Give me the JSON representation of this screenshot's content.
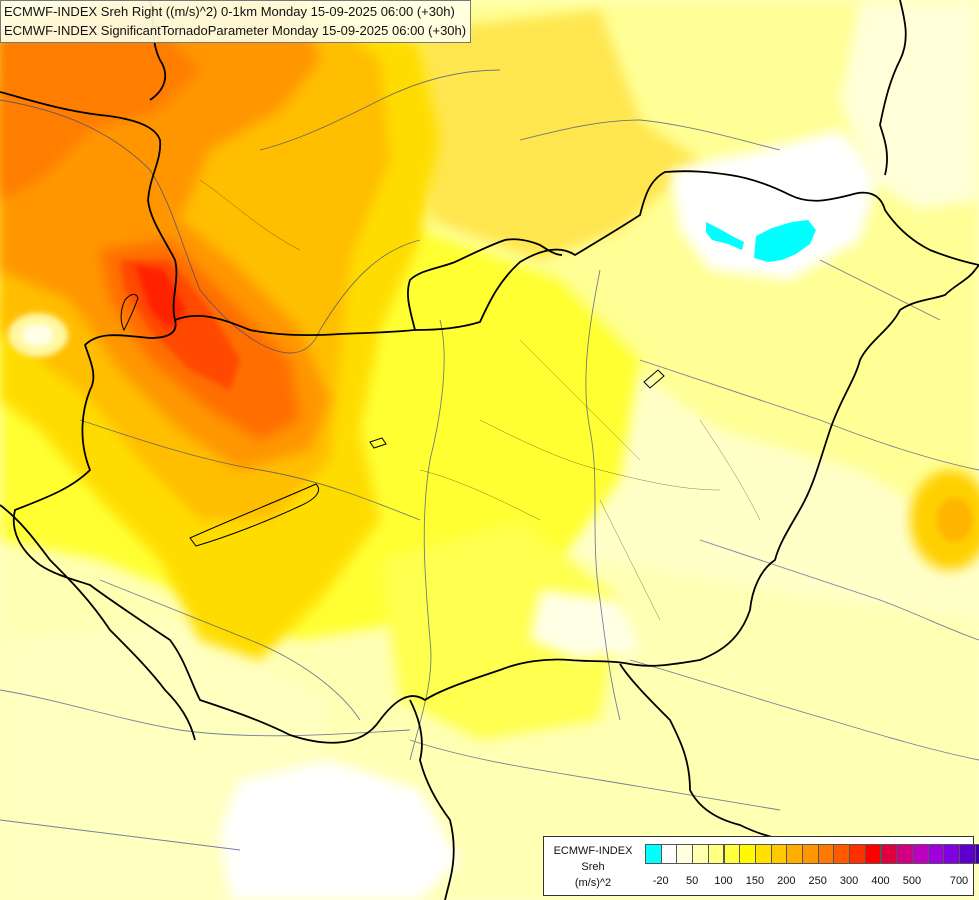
{
  "header": {
    "line1": "ECMWF-INDEX Sreh Right ((m/s)^2) 0-1km Monday 15-09-2025 06:00 (+30h)",
    "line2": "ECMWF-INDEX SignificantTornadoParameter Monday 15-09-2025 06:00 (+30h)"
  },
  "legend": {
    "model": "ECMWF-INDEX",
    "parameter": "Sreh",
    "unit": "(m/s)^2",
    "swatch_colors": [
      "#00ffff",
      "#ffffff",
      "#ffffe0",
      "#ffffb0",
      "#ffff80",
      "#ffff40",
      "#fffa00",
      "#ffe000",
      "#ffc800",
      "#ffae00",
      "#ff9600",
      "#ff7800",
      "#ff5a00",
      "#ff3000",
      "#ff0000",
      "#e00040",
      "#d00080",
      "#c000c0",
      "#a000e0",
      "#8000e0",
      "#5a00c8",
      "#3c00a0",
      "#000080"
    ],
    "ticks": [
      "-20",
      "50",
      "100",
      "150",
      "200",
      "250",
      "300",
      "400",
      "500",
      "700"
    ]
  },
  "colors": {
    "background": "#ffffc8",
    "cyan": "#00ffff",
    "river": "#2a3a8a",
    "border": "#000000"
  }
}
